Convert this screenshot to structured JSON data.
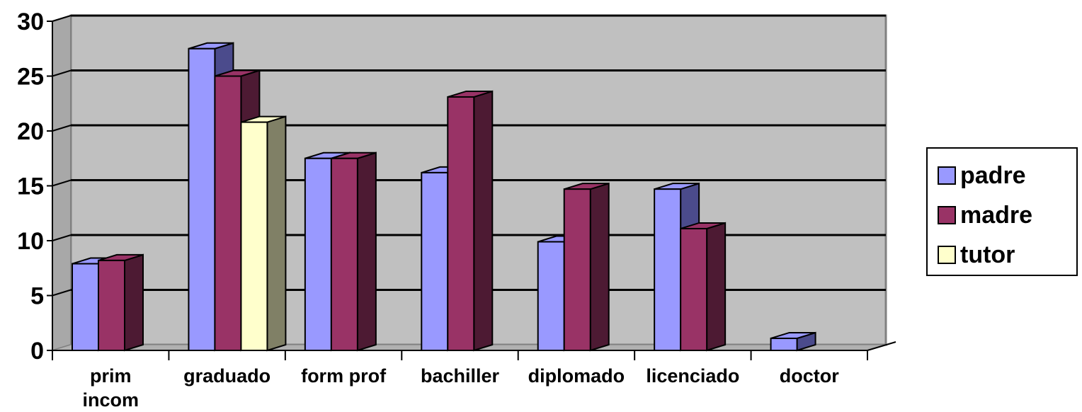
{
  "chart_data": {
    "type": "bar",
    "categories": [
      "prim incom",
      "graduado",
      "form prof",
      "bachiller",
      "diplomado",
      "licenciado",
      "doctor"
    ],
    "series": [
      {
        "name": "padre",
        "values": [
          7.9,
          27.5,
          17.5,
          16.2,
          9.9,
          14.7,
          1.1
        ],
        "color": "#9999ff",
        "side": "#4b4b8c"
      },
      {
        "name": "madre",
        "values": [
          8.2,
          25.0,
          17.5,
          23.1,
          14.7,
          11.1,
          0
        ],
        "color": "#993366",
        "side": "#4d1a33"
      },
      {
        "name": "tutor",
        "values": [
          0,
          20.8,
          0,
          0,
          0,
          0,
          0
        ],
        "color": "#ffffcc",
        "side": "#808066"
      }
    ],
    "ylim": [
      0,
      30
    ],
    "yticks": [
      0,
      5,
      10,
      15,
      20,
      25,
      30
    ],
    "grid": true,
    "legend": "right",
    "plot_background": "#c0c0c0",
    "title": "",
    "xlabel": "",
    "ylabel": ""
  }
}
